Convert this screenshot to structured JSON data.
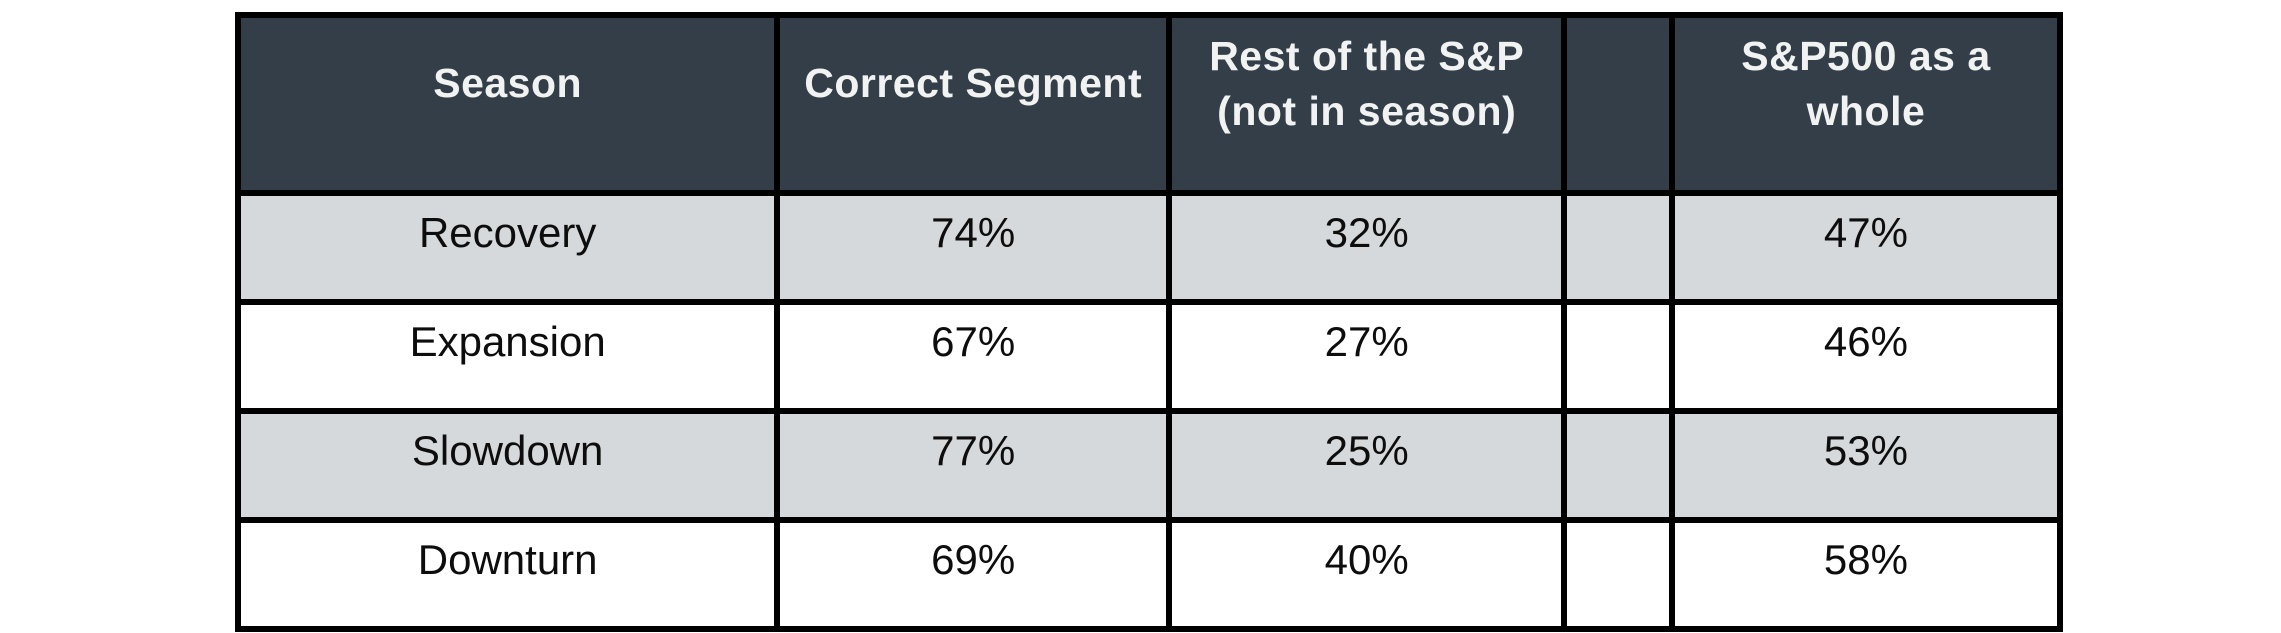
{
  "colors": {
    "header_bg": "#333E48",
    "header_text": "#F1F2F2",
    "row_alt_bg": "#D5D9DC",
    "row_bg": "#FFFFFF",
    "border": "#000000",
    "body_text": "#0D0D0D",
    "page_bg": "#FFFFFF"
  },
  "chart_data": {
    "type": "table",
    "title": "",
    "columns": [
      "Season",
      "Correct Segment",
      "Rest of the S&P (not in season)",
      "",
      "S&P500 as a whole"
    ],
    "rows": [
      [
        "Recovery",
        "74%",
        "32%",
        "",
        "47%"
      ],
      [
        "Expansion",
        "67%",
        "27%",
        "",
        "46%"
      ],
      [
        "Slowdown",
        "77%",
        "25%",
        "",
        "53%"
      ],
      [
        "Downturn",
        "69%",
        "40%",
        "",
        "58%"
      ]
    ],
    "layout_hints": {
      "header_style": "dark-slate, bold, white text",
      "row_striping": "odd rows light gray, even rows white",
      "spacer_column_index": 3,
      "grid": "thick black borders on all cells"
    }
  }
}
